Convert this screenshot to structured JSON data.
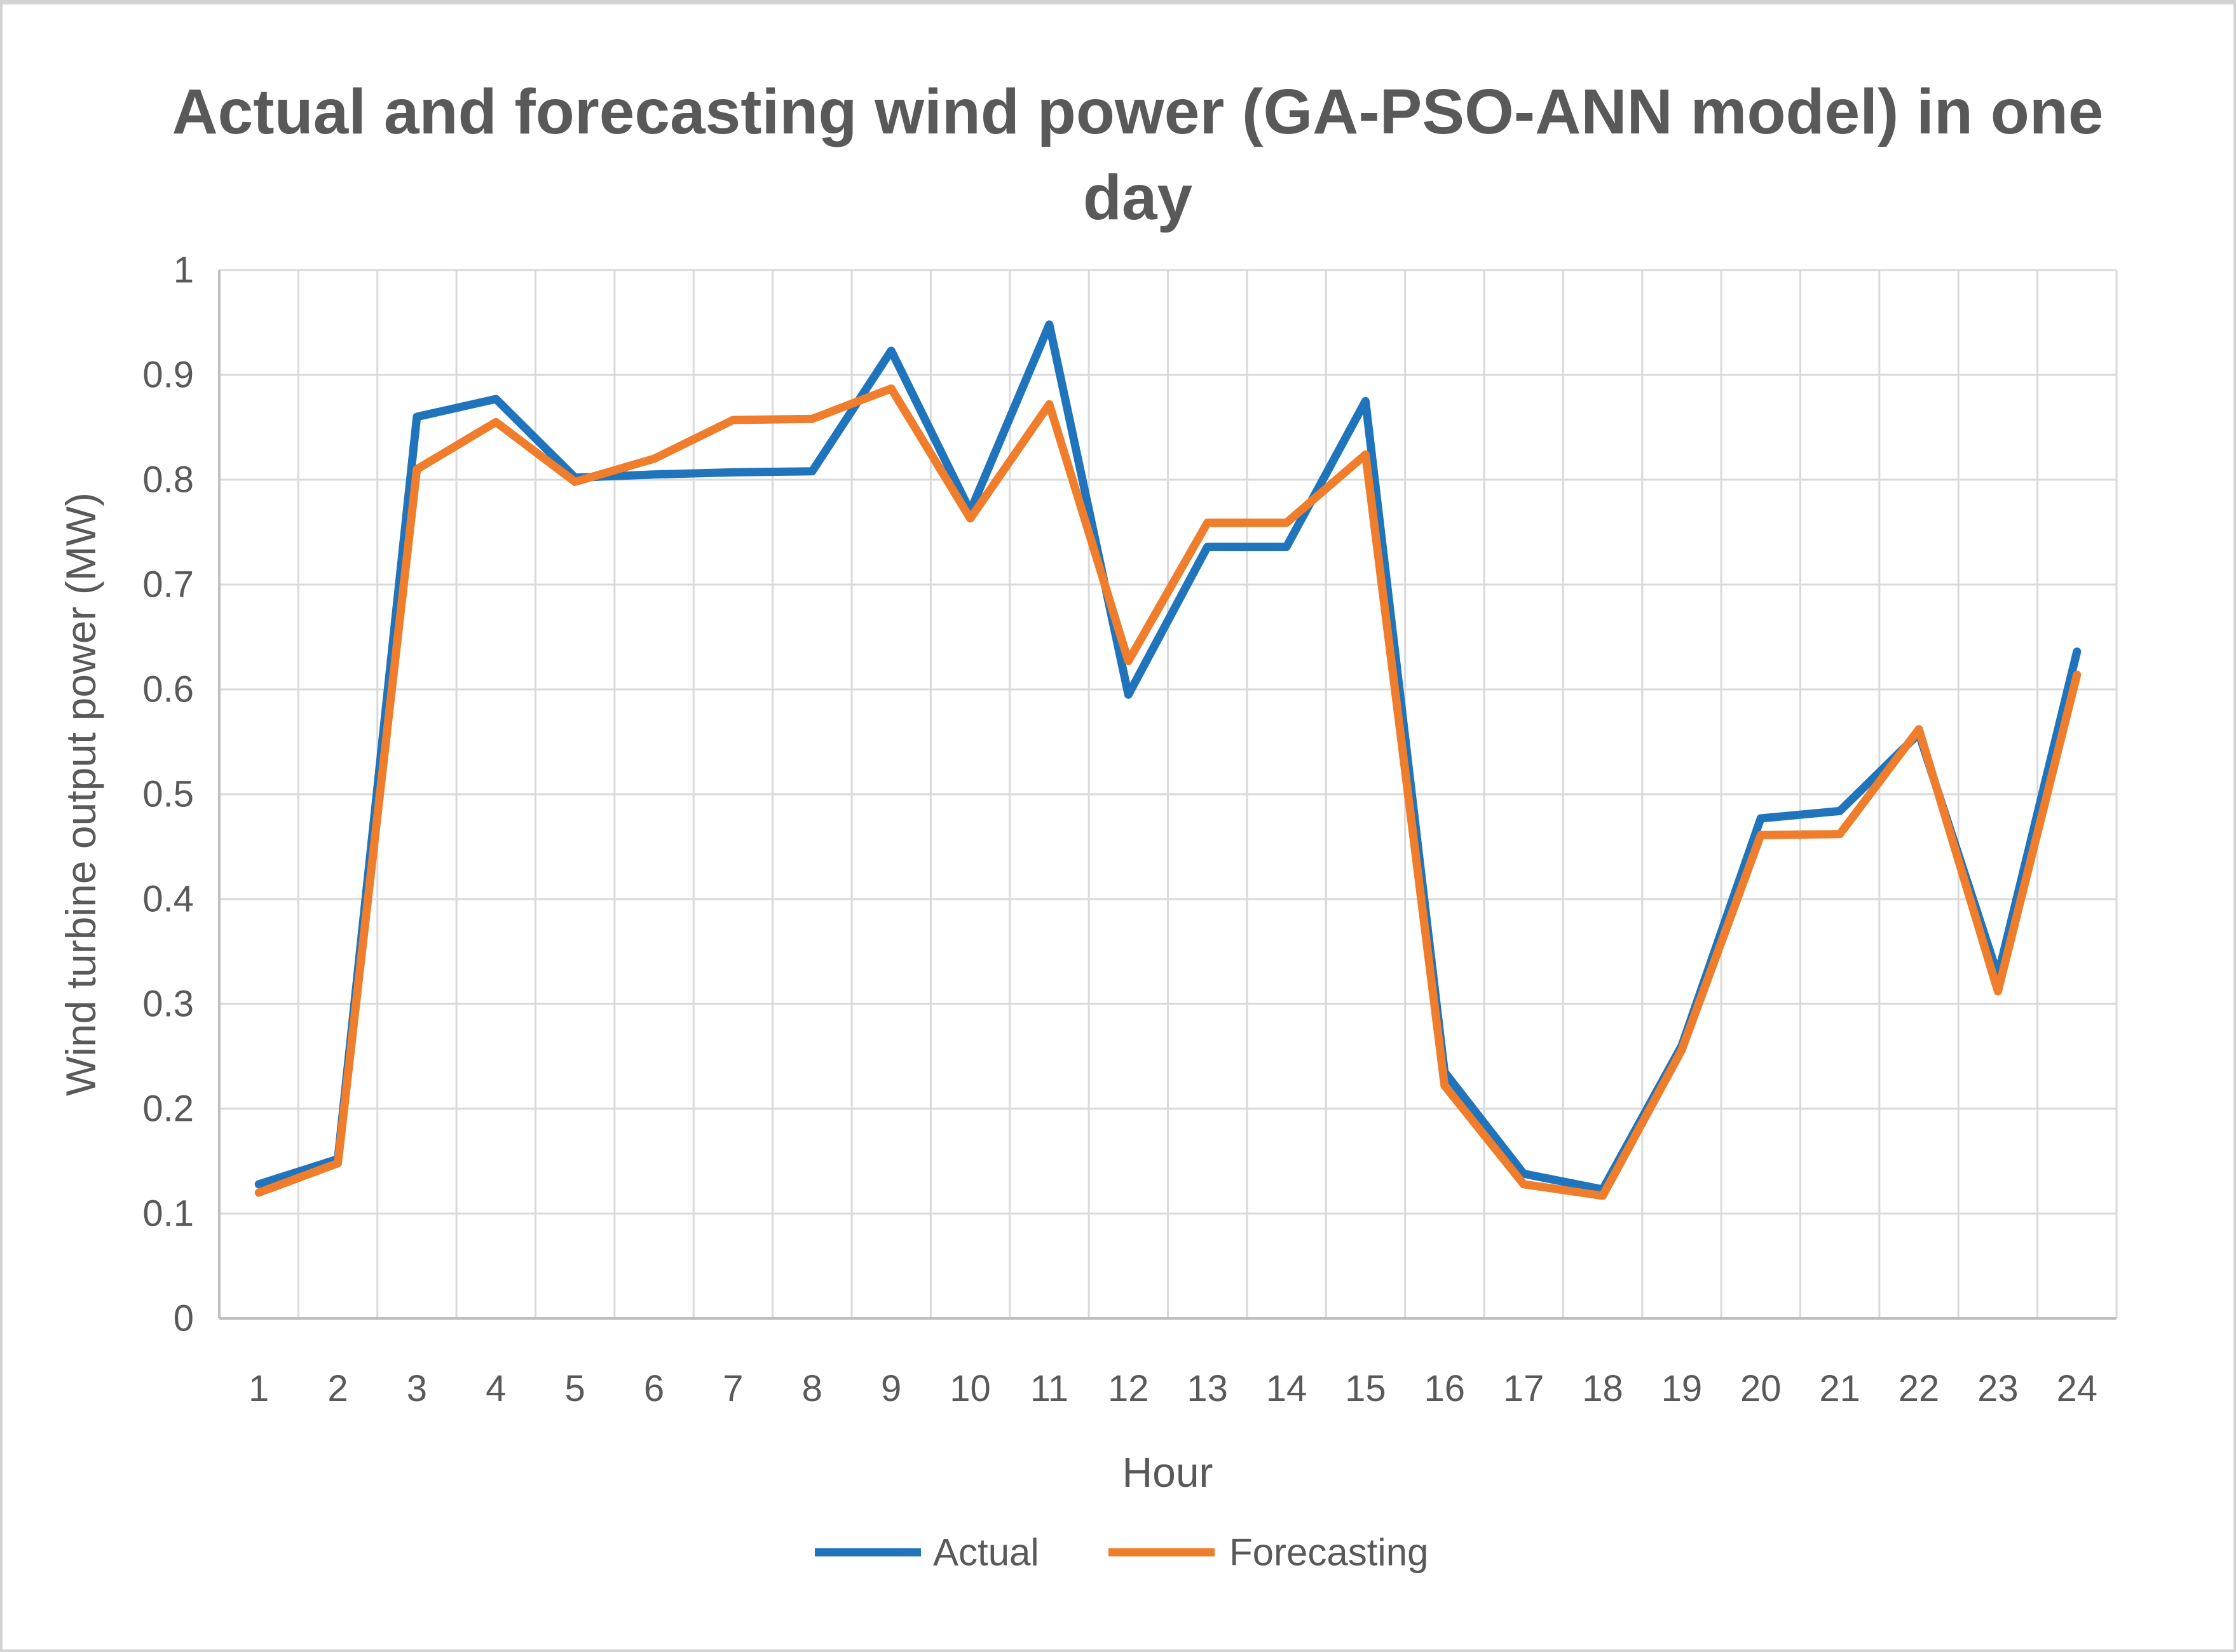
{
  "chart": {
    "title_line1": "Actual and forecasting wind power (GA-PSO-ANN model) in one",
    "title_line2": "day"
  },
  "chart_data": {
    "type": "line",
    "title": "Actual and forecasting wind power (GA-PSO-ANN model) in one day",
    "xlabel": "Hour",
    "ylabel": "Wind turbine output power (MW)",
    "x": [
      1,
      2,
      3,
      4,
      5,
      6,
      7,
      8,
      9,
      10,
      11,
      12,
      13,
      14,
      15,
      16,
      17,
      18,
      19,
      20,
      21,
      22,
      23,
      24
    ],
    "series": [
      {
        "name": "Actual",
        "color": "#1F74BC",
        "values": [
          0.128,
          0.152,
          0.86,
          0.877,
          0.802,
          0.805,
          0.807,
          0.808,
          0.923,
          0.77,
          0.948,
          0.595,
          0.736,
          0.736,
          0.875,
          0.235,
          0.138,
          0.123,
          0.26,
          0.477,
          0.484,
          0.558,
          0.327,
          0.636
        ]
      },
      {
        "name": "Forecasting",
        "color": "#F07D2B",
        "values": [
          0.12,
          0.148,
          0.81,
          0.855,
          0.798,
          0.82,
          0.857,
          0.858,
          0.887,
          0.763,
          0.872,
          0.627,
          0.759,
          0.759,
          0.824,
          0.222,
          0.128,
          0.117,
          0.256,
          0.461,
          0.462,
          0.562,
          0.312,
          0.614
        ]
      }
    ],
    "ylim": [
      0,
      1
    ],
    "ytick_step": 0.1,
    "grid": true,
    "legend_position": "bottom",
    "text_color": "#595959",
    "gridline_color": "#D9D9D9"
  }
}
